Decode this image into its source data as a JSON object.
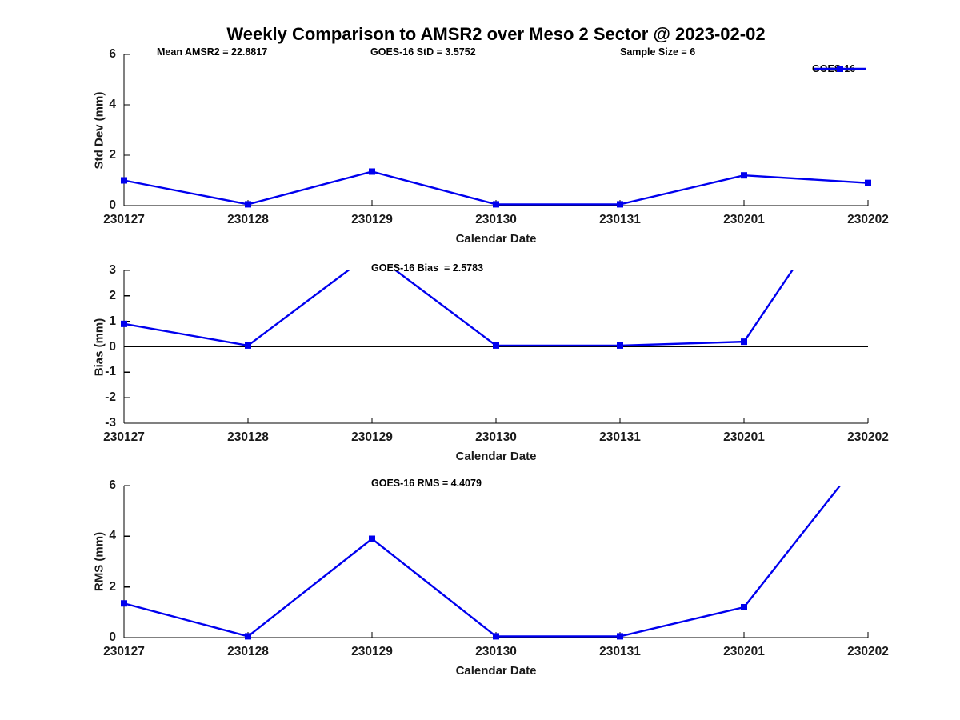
{
  "title": "Weekly Comparison to AMSR2 over Meso 2 Sector @ 2023-02-02",
  "legend": {
    "label": "GOES-16"
  },
  "colors": {
    "series_line": "#0000EE",
    "axis": "#000000",
    "tick_text": "#1a1a1a"
  },
  "chart_data": {
    "type": "line",
    "title": "Weekly Comparison to AMSR2 over Meso 2 Sector @ 2023-02-02",
    "xlabel": "Calendar Date",
    "categories": [
      "230127",
      "230128",
      "230129",
      "230130",
      "230131",
      "230201",
      "230202"
    ],
    "legend_position": "top-right",
    "grid": false,
    "subplots": [
      {
        "name": "std-dev",
        "ylabel": "Std Dev (mm)",
        "ylim": [
          0,
          6
        ],
        "yticks": [
          0,
          2,
          4,
          6
        ],
        "zero_line": false,
        "annotations": [
          "Mean AMSR2 = 22.8817",
          "GOES-16 StD = 3.5752",
          "Sample Size = 6"
        ],
        "series": [
          {
            "name": "GOES-16",
            "values": [
              1.0,
              0.05,
              1.35,
              0.05,
              0.05,
              1.2,
              0.9
            ]
          }
        ]
      },
      {
        "name": "bias",
        "ylabel": "Bias (mm)",
        "ylim": [
          -3,
          3
        ],
        "yticks": [
          -3,
          -2,
          -1,
          0,
          1,
          2,
          3
        ],
        "zero_line": true,
        "annotations": [
          "GOES-16 Bias  = 2.5783"
        ],
        "series": [
          {
            "name": "GOES-16",
            "values": [
              0.9,
              0.05,
              3.7,
              0.05,
              0.05,
              0.2,
              7.4
            ]
          }
        ]
      },
      {
        "name": "rms",
        "ylabel": "RMS (mm)",
        "ylim": [
          0,
          6
        ],
        "yticks": [
          0,
          2,
          4,
          6
        ],
        "zero_line": false,
        "annotations": [
          "GOES-16 RMS = 4.4079"
        ],
        "series": [
          {
            "name": "GOES-16",
            "values": [
              1.35,
              0.05,
              3.9,
              0.05,
              0.05,
              1.2,
              7.4
            ]
          }
        ]
      }
    ]
  }
}
